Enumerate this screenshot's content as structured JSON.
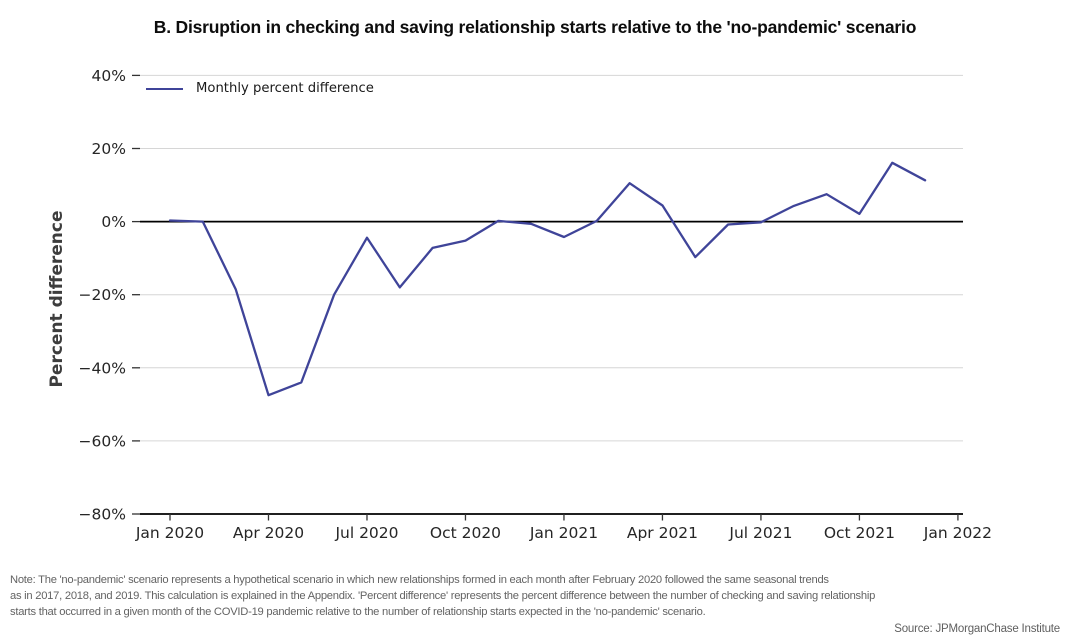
{
  "title": "B. Disruption in checking and saving relationship starts relative to the 'no-pandemic' scenario",
  "legend": {
    "label": "Monthly percent difference"
  },
  "chart_data": {
    "type": "line",
    "title": "B. Disruption in checking and saving relationship starts relative to the 'no-pandemic' scenario",
    "x": [
      "Jan 2020",
      "Feb 2020",
      "Mar 2020",
      "Apr 2020",
      "May 2020",
      "Jun 2020",
      "Jul 2020",
      "Aug 2020",
      "Sep 2020",
      "Oct 2020",
      "Nov 2020",
      "Dec 2020",
      "Jan 2021",
      "Feb 2021",
      "Mar 2021",
      "Apr 2021",
      "May 2021",
      "Jun 2021",
      "Jul 2021",
      "Aug 2021",
      "Sep 2021",
      "Oct 2021",
      "Nov 2021",
      "Dec 2021"
    ],
    "series": [
      {
        "name": "Monthly percent difference",
        "color": "#3f4499",
        "values": [
          0.3,
          0.0,
          -18.5,
          -47.5,
          -44.0,
          -20.0,
          -4.4,
          -18.0,
          -7.2,
          -5.2,
          0.2,
          -0.6,
          -4.2,
          0.2,
          10.5,
          4.4,
          -9.7,
          -0.8,
          -0.2,
          4.3,
          7.5,
          2.1,
          16.1,
          11.3
        ]
      }
    ],
    "xlabel": "",
    "ylabel": "Percent difference",
    "ylim": [
      -80,
      40
    ],
    "yticks": [
      40,
      20,
      0,
      -20,
      -40,
      -60,
      -80
    ],
    "ytick_format": "percent",
    "xticks": [
      "Jan 2020",
      "Apr 2020",
      "Jul 2020",
      "Oct 2020",
      "Jan 2021",
      "Apr 2021",
      "Jul 2021",
      "Oct 2021",
      "Jan 2022"
    ],
    "xtick_positions": [
      0,
      3,
      6,
      9,
      12,
      15,
      18,
      21,
      24
    ],
    "grid": true,
    "legend_position": "upper left",
    "zero_line": true
  },
  "note": {
    "lines": [
      "Note: The 'no-pandemic' scenario represents a hypothetical scenario in which new relationships formed in each month after February 2020 followed the same seasonal trends",
      "as in 2017, 2018, and 2019. This calculation is explained in the Appendix. 'Percent difference' represents the percent difference between the number of checking and saving relationship",
      "starts that occurred in a given month of the COVID-19 pandemic relative to the number of relationship starts expected in the 'no-pandemic' scenario."
    ]
  },
  "source": "Source: JPMorganChase Institute",
  "colors": {
    "line": "#3f4499",
    "grid": "#d6d6d6",
    "axis": "#000000",
    "tick": "#333333",
    "tick_label": "#262626",
    "axis_title": "#3d3d3d",
    "note": "#636363"
  }
}
